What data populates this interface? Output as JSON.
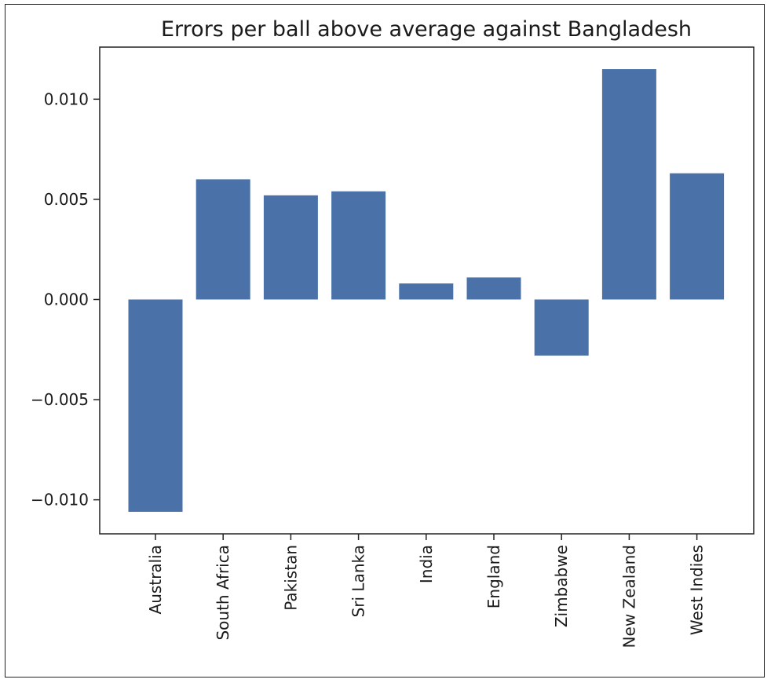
{
  "chart_data": {
    "type": "bar",
    "title": "Errors per ball above average against Bangladesh",
    "xlabel": "",
    "ylabel": "",
    "categories": [
      "Australia",
      "South Africa",
      "Pakistan",
      "Sri Lanka",
      "India",
      "England",
      "Zimbabwe",
      "New Zealand",
      "West Indies"
    ],
    "values": [
      -0.0106,
      0.006,
      0.0052,
      0.0054,
      0.0008,
      0.0011,
      -0.0028,
      0.0115,
      0.0063
    ],
    "yticks": [
      -0.01,
      -0.005,
      0.0,
      0.005,
      0.01
    ],
    "ytick_labels": [
      "−0.010",
      "−0.005",
      "0.000",
      "0.005",
      "0.010"
    ],
    "ylim": [
      -0.0117,
      0.0126
    ],
    "grid": false,
    "bar_color": "#4a72a8"
  }
}
